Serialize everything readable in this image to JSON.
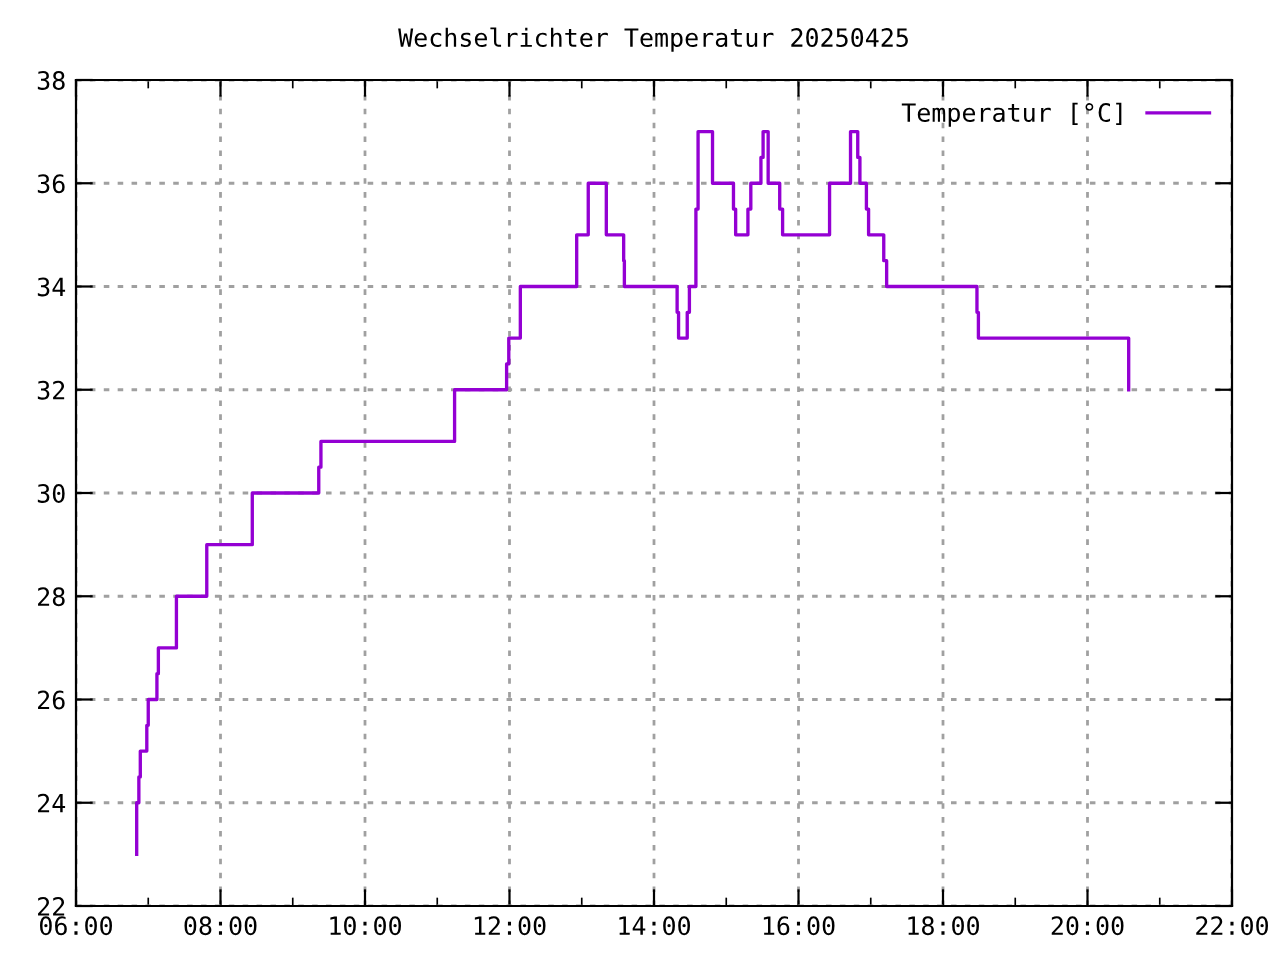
{
  "chart_data": {
    "type": "step",
    "title": "Wechselrichter Temperatur 20250425",
    "xlim": [
      6,
      22
    ],
    "xticks": [
      {
        "value": 6,
        "label": "06:00"
      },
      {
        "value": 8,
        "label": "08:00"
      },
      {
        "value": 10,
        "label": "10:00"
      },
      {
        "value": 12,
        "label": "12:00"
      },
      {
        "value": 14,
        "label": "14:00"
      },
      {
        "value": 16,
        "label": "16:00"
      },
      {
        "value": 18,
        "label": "18:00"
      },
      {
        "value": 20,
        "label": "20:00"
      },
      {
        "value": 22,
        "label": "22:00"
      }
    ],
    "ylim": [
      22,
      38
    ],
    "yticks": [
      22,
      24,
      26,
      28,
      30,
      32,
      34,
      36,
      38
    ],
    "grid": true,
    "legend": "top right",
    "line_style": "solid",
    "series": [
      {
        "name": "Temperatur [°C]",
        "color": "#9400d3",
        "x": [
          6.84,
          6.84,
          6.87,
          6.89,
          6.98,
          7.0,
          7.12,
          7.14,
          7.39,
          7.81,
          8.44,
          9.36,
          9.39,
          11.24,
          11.96,
          11.99,
          12.15,
          12.93,
          13.09,
          13.34,
          13.58,
          13.59,
          14.32,
          14.34,
          14.46,
          14.49,
          14.58,
          14.61,
          14.81,
          15.1,
          15.13,
          15.3,
          15.34,
          15.48,
          15.51,
          15.58,
          15.74,
          15.78,
          16.43,
          16.72,
          16.82,
          16.85,
          16.94,
          16.97,
          17.18,
          17.22,
          18.47,
          18.49,
          20.57
        ],
        "values": [
          23,
          24,
          24.5,
          25,
          25.5,
          26,
          26.5,
          27,
          28,
          29,
          30,
          30.5,
          31,
          32,
          32.5,
          33,
          34,
          35,
          36,
          35,
          34.5,
          34,
          33.5,
          33,
          33.5,
          34,
          35.5,
          37,
          36,
          35.5,
          35,
          35.5,
          36,
          36.5,
          37,
          36,
          35.5,
          35,
          36,
          37,
          36.5,
          36,
          35.5,
          35,
          34.5,
          34,
          33.5,
          33,
          32
        ]
      }
    ]
  }
}
